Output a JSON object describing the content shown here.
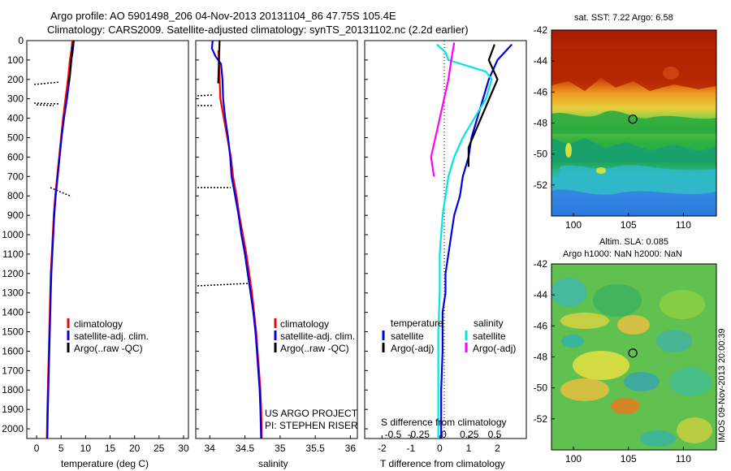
{
  "header": {
    "line1": "Argo profile: AO 5901498_206 04-Nov-2013 20131104_86 47.75S 105.4E",
    "line2": "Climatology: CARS2009. Satellite-adjusted climatology: synTS_20131102.nc (2.2d earlier)"
  },
  "colors": {
    "climatology": "#ff0000",
    "satellite": "#0000dd",
    "argo": "#000000",
    "salinity_satellite": "#00e5e5",
    "salinity_argo": "#ff00ff"
  },
  "chart_data": [
    {
      "type": "line",
      "panel": "temperature",
      "xlabel": "temperature (deg C)",
      "xlim": [
        -2,
        31
      ],
      "xticks": [
        0,
        5,
        10,
        15,
        20,
        25,
        30
      ],
      "ylim": [
        2050,
        0
      ],
      "yticks": [
        0,
        100,
        200,
        300,
        400,
        500,
        600,
        700,
        800,
        900,
        1000,
        1100,
        1200,
        1300,
        1400,
        1500,
        1600,
        1700,
        1800,
        1900,
        2000
      ],
      "legend": [
        "climatology",
        "satellite-adj. clim.",
        "Argo(..raw -QC)"
      ],
      "series": [
        {
          "name": "climatology",
          "color": "#ff0000",
          "points": [
            [
              7.3,
              0
            ],
            [
              7.1,
              50
            ],
            [
              6.8,
              100
            ],
            [
              6.4,
              200
            ],
            [
              5.9,
              300
            ],
            [
              5.4,
              400
            ],
            [
              5.0,
              500
            ],
            [
              4.6,
              600
            ],
            [
              4.2,
              700
            ],
            [
              3.8,
              800
            ],
            [
              3.5,
              900
            ],
            [
              3.3,
              1000
            ],
            [
              3.1,
              1100
            ],
            [
              2.9,
              1200
            ],
            [
              2.8,
              1300
            ],
            [
              2.7,
              1400
            ],
            [
              2.6,
              1500
            ],
            [
              2.5,
              1600
            ],
            [
              2.4,
              1700
            ],
            [
              2.3,
              1800
            ],
            [
              2.2,
              1900
            ],
            [
              2.1,
              2050
            ]
          ]
        },
        {
          "name": "satellite-adj. clim.",
          "color": "#0000dd",
          "points": [
            [
              7.6,
              0
            ],
            [
              7.4,
              50
            ],
            [
              7.1,
              100
            ],
            [
              6.7,
              200
            ],
            [
              6.2,
              300
            ],
            [
              5.6,
              400
            ],
            [
              5.1,
              500
            ],
            [
              4.7,
              600
            ],
            [
              4.3,
              700
            ],
            [
              3.9,
              800
            ],
            [
              3.6,
              900
            ],
            [
              3.4,
              1000
            ],
            [
              3.2,
              1100
            ],
            [
              3.0,
              1200
            ],
            [
              2.9,
              1300
            ],
            [
              2.8,
              1400
            ],
            [
              2.7,
              1500
            ],
            [
              2.6,
              1600
            ],
            [
              2.5,
              1700
            ],
            [
              2.4,
              1800
            ],
            [
              2.3,
              1900
            ],
            [
              2.2,
              2050
            ]
          ]
        },
        {
          "name": "Argo(..raw -QC)",
          "color": "#000000",
          "dash": "solid",
          "points": [
            [
              7.5,
              0
            ],
            [
              7.2,
              60
            ],
            [
              7.0,
              120
            ],
            [
              6.8,
              180
            ],
            [
              6.5,
              220
            ]
          ]
        }
      ]
    },
    {
      "type": "line",
      "panel": "salinity",
      "xlabel": "salinity",
      "xlim": [
        33.8,
        36.1
      ],
      "xticks": [
        34,
        34.5,
        35,
        35.5,
        36
      ],
      "ylim": [
        2050,
        0
      ],
      "legend": [
        "climatology",
        "satellite-adj. clim.",
        "Argo(..raw -QC)"
      ],
      "annotations": [
        "US ARGO PROJECT",
        "PI: STEPHEN RISER"
      ],
      "series": [
        {
          "name": "climatology",
          "color": "#ff0000",
          "points": [
            [
              34.12,
              50
            ],
            [
              34.13,
              100
            ],
            [
              34.14,
              200
            ],
            [
              34.15,
              300
            ],
            [
              34.2,
              400
            ],
            [
              34.25,
              500
            ],
            [
              34.3,
              600
            ],
            [
              34.33,
              700
            ],
            [
              34.38,
              800
            ],
            [
              34.42,
              900
            ],
            [
              34.47,
              1000
            ],
            [
              34.52,
              1100
            ],
            [
              34.56,
              1200
            ],
            [
              34.6,
              1300
            ],
            [
              34.63,
              1400
            ],
            [
              34.66,
              1500
            ],
            [
              34.68,
              1600
            ],
            [
              34.7,
              1700
            ],
            [
              34.72,
              1800
            ],
            [
              34.73,
              1900
            ],
            [
              34.74,
              2050
            ]
          ]
        },
        {
          "name": "satellite-adj. clim.",
          "color": "#0000dd",
          "points": [
            [
              34.04,
              0
            ],
            [
              34.03,
              40
            ],
            [
              34.08,
              80
            ],
            [
              34.16,
              120
            ],
            [
              34.18,
              200
            ],
            [
              34.19,
              300
            ],
            [
              34.22,
              400
            ],
            [
              34.26,
              500
            ],
            [
              34.29,
              600
            ],
            [
              34.31,
              700
            ],
            [
              34.36,
              800
            ],
            [
              34.41,
              900
            ],
            [
              34.45,
              1000
            ],
            [
              34.5,
              1100
            ],
            [
              34.54,
              1200
            ],
            [
              34.58,
              1300
            ],
            [
              34.62,
              1400
            ],
            [
              34.65,
              1500
            ],
            [
              34.67,
              1600
            ],
            [
              34.69,
              1700
            ],
            [
              34.71,
              1800
            ],
            [
              34.72,
              1900
            ],
            [
              34.73,
              2050
            ]
          ]
        },
        {
          "name": "Argo(..raw -QC)",
          "color": "#000000",
          "points": [
            [
              34.14,
              0
            ],
            [
              34.13,
              100
            ],
            [
              34.12,
              220
            ]
          ]
        }
      ]
    },
    {
      "type": "line",
      "panel": "difference",
      "xlabel": "T difference from climatology",
      "xlabel2": "S difference from climatology",
      "xlim": [
        -2.6,
        3.0
      ],
      "xticks": [
        -2,
        -1,
        0,
        1,
        2
      ],
      "xticks_top": [
        -0.5,
        -0.25,
        0,
        0.25,
        0.5
      ],
      "ylim": [
        2050,
        0
      ],
      "legend_temperature": [
        "temperature",
        "satellite",
        "Argo(-adj)"
      ],
      "legend_salinity": [
        "salinity",
        "satellite",
        "Argo(-adj)"
      ],
      "series": [
        {
          "name": "satellite",
          "color": "#0000dd",
          "points": [
            [
              2.5,
              20
            ],
            [
              2.0,
              100
            ],
            [
              1.7,
              200
            ],
            [
              1.5,
              300
            ],
            [
              1.3,
              400
            ],
            [
              1.1,
              500
            ],
            [
              1.0,
              600
            ],
            [
              0.8,
              700
            ],
            [
              0.7,
              800
            ],
            [
              0.5,
              900
            ],
            [
              0.4,
              1000
            ],
            [
              0.3,
              1100
            ],
            [
              0.2,
              1200
            ],
            [
              0.2,
              1300
            ],
            [
              0.1,
              1400
            ],
            [
              0.1,
              1600
            ],
            [
              0.05,
              1800
            ],
            [
              0.05,
              2050
            ]
          ]
        },
        {
          "name": "satellite",
          "color": "#00e5e5",
          "points": [
            [
              -0.1,
              20
            ],
            [
              0.2,
              60
            ],
            [
              0.3,
              100
            ],
            [
              1.6,
              160
            ],
            [
              1.8,
              200
            ],
            [
              1.6,
              300
            ],
            [
              1.2,
              400
            ],
            [
              0.8,
              500
            ],
            [
              0.5,
              600
            ],
            [
              0.3,
              700
            ],
            [
              0.2,
              800
            ],
            [
              0.1,
              900
            ],
            [
              0.0,
              1100
            ],
            [
              0.0,
              1300
            ],
            [
              -0.05,
              1500
            ],
            [
              -0.05,
              1800
            ],
            [
              -0.05,
              2050
            ]
          ]
        },
        {
          "name": "Argo(-adj)",
          "color": "#000000",
          "points": [
            [
              1.9,
              20
            ],
            [
              1.7,
              100
            ],
            [
              2.0,
              200
            ],
            [
              1.0,
              550
            ],
            [
              1.0,
              650
            ]
          ]
        },
        {
          "name": "Argo(-adj)",
          "color": "#ff00ff",
          "points": [
            [
              0.5,
              10
            ],
            [
              0.4,
              100
            ],
            [
              0.3,
              200
            ],
            [
              -0.3,
              600
            ],
            [
              -0.2,
              700
            ]
          ]
        }
      ]
    },
    {
      "type": "heatmap",
      "panel": "sst",
      "title": "sat. SST: 7.22 Argo: 6.58",
      "xlim": [
        98,
        113
      ],
      "ylim": [
        -54,
        -42
      ],
      "xticks": [
        100,
        105,
        110
      ],
      "yticks": [
        -42,
        -44,
        -46,
        -48,
        -50,
        -52
      ],
      "marker": [
        105.4,
        -47.75
      ]
    },
    {
      "type": "heatmap",
      "panel": "sla",
      "title1": "Altim. SLA: 0.085",
      "title2": "Argo h1000: NaN h2000: NaN",
      "xlim": [
        98,
        113
      ],
      "ylim": [
        -54,
        -42
      ],
      "xticks": [
        100,
        105,
        110
      ],
      "yticks": [
        -42,
        -44,
        -46,
        -48,
        -50,
        -52
      ],
      "marker": [
        105.4,
        -47.75
      ]
    }
  ],
  "footer": {
    "side_stamp": "IMOS 09-Nov-2013 20:00:39"
  }
}
